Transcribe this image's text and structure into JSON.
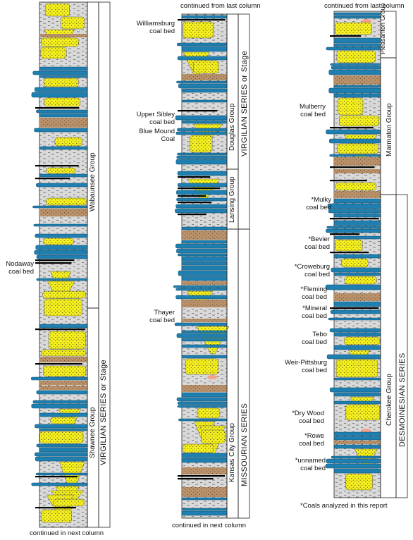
{
  "colors": {
    "shale": "#d8d8d8",
    "limestone": "#1f7fb0",
    "sandstone": "#f4ef1c",
    "mudstone": "#b8916a",
    "paleosol": "#f3a08a",
    "coal": "#000000"
  },
  "captions": {
    "col1_bottom": "continued in next column",
    "col2_top": "continued from last column",
    "col2_bottom": "continued in next column",
    "col3_top": "continued from last column",
    "footnote": "*Coals analyzed in this report"
  },
  "groups": {
    "wabaunsee": "Wabaunsee Group",
    "shawnee": "Shawnee Group",
    "douglas": "Douglas Group",
    "lansing": "Lansing Group",
    "kansas_city": "Kansas City Group",
    "pleasanton": "Pleasanton Group",
    "marmaton": "Marmaton Group",
    "cherokee": "Cherokee Group"
  },
  "series": {
    "virgilian_col1": "VIRGILIAN SERIES or Stage",
    "virgilian_col2": "VIRGILIAN SERIES or Stage",
    "missourian": "MISSOURIAN SERIES",
    "desmoinesian": "DESMOINESIAN SERIES"
  },
  "coal_beds": {
    "nodaway": [
      "Nodaway",
      "coal bed"
    ],
    "williamsburg": [
      "Williamsburg",
      "coal bed"
    ],
    "upper_sibley": [
      "Upper Sibley",
      "coal bed"
    ],
    "blue_mound": [
      "Blue Mound",
      "Coal"
    ],
    "thayer": [
      "Thayer",
      "coal bed"
    ],
    "mulberry": [
      "Mulberry",
      "coal bed"
    ],
    "mulky": [
      "*Mulky",
      "coal bed"
    ],
    "bevier": [
      "*Bevier",
      "coal bed"
    ],
    "croweburg": [
      "*Croweburg",
      "coal bed"
    ],
    "fleming": [
      "*Fleming",
      "coal bed"
    ],
    "mineral": [
      "*Mineral",
      "coal bed"
    ],
    "tebo": [
      "Tebo",
      "coal bed"
    ],
    "weir_pittsburg": [
      "Weir-Pittsburg",
      "coal bed"
    ],
    "dry_wood": [
      "*Dry Wood",
      "coal bed"
    ],
    "rowe": [
      "*Rowe",
      "coal bed"
    ],
    "unnamed": [
      "*unnamed",
      "coal bed"
    ]
  }
}
